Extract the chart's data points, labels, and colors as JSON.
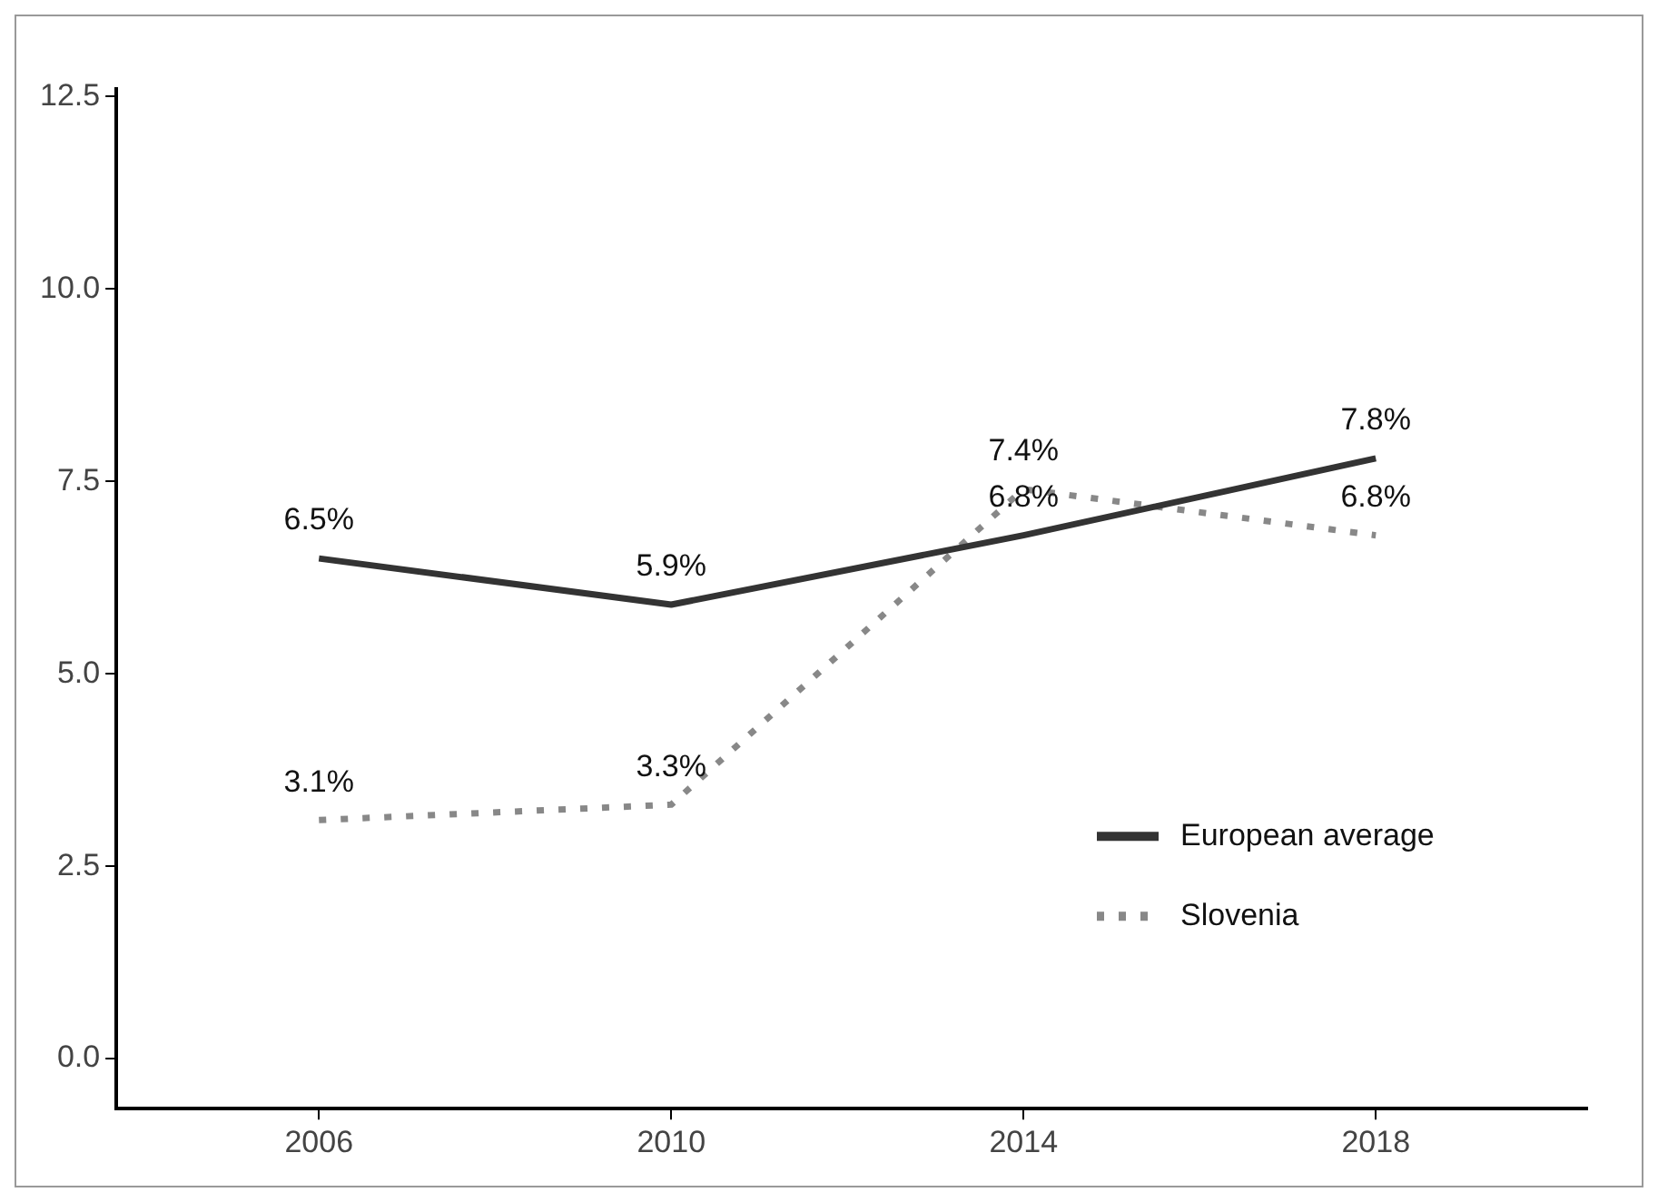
{
  "chart_data": {
    "type": "line",
    "x": [
      2006,
      2010,
      2014,
      2018
    ],
    "series": [
      {
        "name": "European average",
        "color": "#333333",
        "line_style": "solid",
        "values": [
          6.5,
          5.9,
          6.8,
          7.8
        ],
        "value_labels": [
          "6.5%",
          "5.9%",
          "6.8%",
          "7.8%"
        ]
      },
      {
        "name": "Slovenia",
        "color": "#888888",
        "line_style": "dotted",
        "values": [
          3.1,
          3.3,
          7.4,
          6.8
        ],
        "value_labels": [
          "3.1%",
          "3.3%",
          "7.4%",
          "6.8%"
        ]
      }
    ],
    "xlim": [
      2003.7,
      2020.4
    ],
    "xticks": [
      2006,
      2010,
      2014,
      2018
    ],
    "ylim": [
      -0.65,
      12.6
    ],
    "yticks": [
      {
        "value": 0,
        "label": "0.0"
      },
      {
        "value": 2.5,
        "label": "2.5"
      },
      {
        "value": 5,
        "label": "5.0"
      },
      {
        "value": 7.5,
        "label": "7.5"
      },
      {
        "value": 10,
        "label": "10.0"
      },
      {
        "value": 12.5,
        "label": "12.5"
      }
    ],
    "grid": false,
    "legend": "bottom right",
    "marker": "none"
  }
}
